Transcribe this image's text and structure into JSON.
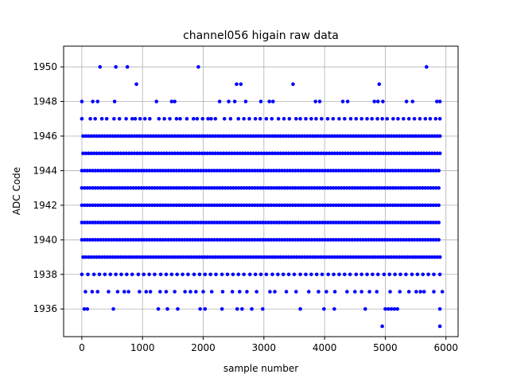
{
  "chart_data": {
    "type": "scatter",
    "title": "channel056 higain raw data",
    "xlabel": "sample number",
    "ylabel": "ADC Code",
    "xlim": [
      -300,
      6200
    ],
    "ylim": [
      1934.4,
      1951.2
    ],
    "x_ticks": [
      0,
      1000,
      2000,
      3000,
      4000,
      5000,
      6000
    ],
    "x_tick_labels": [
      "0",
      "1000",
      "2000",
      "3000",
      "4000",
      "5000",
      "6000"
    ],
    "y_ticks": [
      1936,
      1938,
      1940,
      1942,
      1944,
      1946,
      1948,
      1950
    ],
    "y_tick_labels": [
      "1936",
      "1938",
      "1940",
      "1942",
      "1944",
      "1946",
      "1948",
      "1950"
    ],
    "grid": true,
    "marker_color": "#0000ff",
    "series": [
      {
        "name": "",
        "dense_rows": [
          {
            "y": 1939,
            "x_start": 20,
            "x_end": 5920
          },
          {
            "y": 1940,
            "x_start": 0,
            "x_end": 5920
          },
          {
            "y": 1941,
            "x_start": 0,
            "x_end": 5920
          },
          {
            "y": 1942,
            "x_start": 0,
            "x_end": 5920
          },
          {
            "y": 1943,
            "x_start": 0,
            "x_end": 5920
          },
          {
            "y": 1944,
            "x_start": 0,
            "x_end": 5920
          },
          {
            "y": 1945,
            "x_start": 20,
            "x_end": 5920
          },
          {
            "y": 1946,
            "x_start": 20,
            "x_end": 5920
          }
        ],
        "points": [
          [
            300,
            1950
          ],
          [
            560,
            1950
          ],
          [
            750,
            1950
          ],
          [
            1920,
            1950
          ],
          [
            5680,
            1950
          ],
          [
            900,
            1949
          ],
          [
            2550,
            1949
          ],
          [
            2620,
            1949
          ],
          [
            3480,
            1949
          ],
          [
            4900,
            1949
          ],
          [
            0,
            1948
          ],
          [
            180,
            1948
          ],
          [
            260,
            1948
          ],
          [
            540,
            1948
          ],
          [
            1230,
            1948
          ],
          [
            1480,
            1948
          ],
          [
            1530,
            1948
          ],
          [
            2270,
            1948
          ],
          [
            2420,
            1948
          ],
          [
            2520,
            1948
          ],
          [
            2700,
            1948
          ],
          [
            2950,
            1948
          ],
          [
            3090,
            1948
          ],
          [
            3150,
            1948
          ],
          [
            3850,
            1948
          ],
          [
            3920,
            1948
          ],
          [
            4300,
            1948
          ],
          [
            4380,
            1948
          ],
          [
            4820,
            1948
          ],
          [
            4880,
            1948
          ],
          [
            4960,
            1948
          ],
          [
            5350,
            1948
          ],
          [
            5450,
            1948
          ],
          [
            5850,
            1948
          ],
          [
            5900,
            1948
          ],
          [
            0,
            1947
          ],
          [
            140,
            1947
          ],
          [
            220,
            1947
          ],
          [
            330,
            1947
          ],
          [
            410,
            1947
          ],
          [
            530,
            1947
          ],
          [
            620,
            1947
          ],
          [
            730,
            1947
          ],
          [
            830,
            1947
          ],
          [
            880,
            1947
          ],
          [
            960,
            1947
          ],
          [
            1040,
            1947
          ],
          [
            1120,
            1947
          ],
          [
            1270,
            1947
          ],
          [
            1360,
            1947
          ],
          [
            1450,
            1947
          ],
          [
            1560,
            1947
          ],
          [
            1620,
            1947
          ],
          [
            1730,
            1947
          ],
          [
            1840,
            1947
          ],
          [
            1900,
            1947
          ],
          [
            1990,
            1947
          ],
          [
            2080,
            1947
          ],
          [
            2130,
            1947
          ],
          [
            2200,
            1947
          ],
          [
            2350,
            1947
          ],
          [
            2450,
            1947
          ],
          [
            2580,
            1947
          ],
          [
            2670,
            1947
          ],
          [
            2760,
            1947
          ],
          [
            2860,
            1947
          ],
          [
            2940,
            1947
          ],
          [
            3040,
            1947
          ],
          [
            3130,
            1947
          ],
          [
            3240,
            1947
          ],
          [
            3330,
            1947
          ],
          [
            3420,
            1947
          ],
          [
            3530,
            1947
          ],
          [
            3600,
            1947
          ],
          [
            3690,
            1947
          ],
          [
            3780,
            1947
          ],
          [
            3860,
            1947
          ],
          [
            3950,
            1947
          ],
          [
            4050,
            1947
          ],
          [
            4140,
            1947
          ],
          [
            4240,
            1947
          ],
          [
            4330,
            1947
          ],
          [
            4430,
            1947
          ],
          [
            4520,
            1947
          ],
          [
            4610,
            1947
          ],
          [
            4700,
            1947
          ],
          [
            4780,
            1947
          ],
          [
            4870,
            1947
          ],
          [
            4950,
            1947
          ],
          [
            5030,
            1947
          ],
          [
            5130,
            1947
          ],
          [
            5210,
            1947
          ],
          [
            5300,
            1947
          ],
          [
            5390,
            1947
          ],
          [
            5480,
            1947
          ],
          [
            5570,
            1947
          ],
          [
            5660,
            1947
          ],
          [
            5740,
            1947
          ],
          [
            5830,
            1947
          ],
          [
            5900,
            1947
          ],
          [
            0,
            1938
          ],
          [
            100,
            1938
          ],
          [
            200,
            1938
          ],
          [
            290,
            1938
          ],
          [
            380,
            1938
          ],
          [
            470,
            1938
          ],
          [
            560,
            1938
          ],
          [
            650,
            1938
          ],
          [
            740,
            1938
          ],
          [
            830,
            1938
          ],
          [
            930,
            1938
          ],
          [
            1020,
            1938
          ],
          [
            1110,
            1938
          ],
          [
            1200,
            1938
          ],
          [
            1300,
            1938
          ],
          [
            1390,
            1938
          ],
          [
            1480,
            1938
          ],
          [
            1570,
            1938
          ],
          [
            1660,
            1938
          ],
          [
            1750,
            1938
          ],
          [
            1850,
            1938
          ],
          [
            1940,
            1938
          ],
          [
            2030,
            1938
          ],
          [
            2120,
            1938
          ],
          [
            2210,
            1938
          ],
          [
            2310,
            1938
          ],
          [
            2400,
            1938
          ],
          [
            2490,
            1938
          ],
          [
            2580,
            1938
          ],
          [
            2670,
            1938
          ],
          [
            2770,
            1938
          ],
          [
            2860,
            1938
          ],
          [
            2950,
            1938
          ],
          [
            3040,
            1938
          ],
          [
            3140,
            1938
          ],
          [
            3230,
            1938
          ],
          [
            3320,
            1938
          ],
          [
            3410,
            1938
          ],
          [
            3500,
            1938
          ],
          [
            3600,
            1938
          ],
          [
            3690,
            1938
          ],
          [
            3780,
            1938
          ],
          [
            3870,
            1938
          ],
          [
            3960,
            1938
          ],
          [
            4060,
            1938
          ],
          [
            4150,
            1938
          ],
          [
            4240,
            1938
          ],
          [
            4330,
            1938
          ],
          [
            4420,
            1938
          ],
          [
            4520,
            1938
          ],
          [
            4610,
            1938
          ],
          [
            4700,
            1938
          ],
          [
            4790,
            1938
          ],
          [
            4880,
            1938
          ],
          [
            4980,
            1938
          ],
          [
            5070,
            1938
          ],
          [
            5160,
            1938
          ],
          [
            5250,
            1938
          ],
          [
            5340,
            1938
          ],
          [
            5440,
            1938
          ],
          [
            5530,
            1938
          ],
          [
            5620,
            1938
          ],
          [
            5710,
            1938
          ],
          [
            5800,
            1938
          ],
          [
            5900,
            1938
          ],
          [
            60,
            1937
          ],
          [
            170,
            1937
          ],
          [
            260,
            1937
          ],
          [
            440,
            1937
          ],
          [
            590,
            1937
          ],
          [
            700,
            1937
          ],
          [
            770,
            1937
          ],
          [
            950,
            1937
          ],
          [
            1060,
            1937
          ],
          [
            1130,
            1937
          ],
          [
            1290,
            1937
          ],
          [
            1390,
            1937
          ],
          [
            1530,
            1937
          ],
          [
            1700,
            1937
          ],
          [
            1790,
            1937
          ],
          [
            1880,
            1937
          ],
          [
            2000,
            1937
          ],
          [
            2140,
            1937
          ],
          [
            2320,
            1937
          ],
          [
            2480,
            1937
          ],
          [
            2600,
            1937
          ],
          [
            2720,
            1937
          ],
          [
            2880,
            1937
          ],
          [
            3100,
            1937
          ],
          [
            3180,
            1937
          ],
          [
            3370,
            1937
          ],
          [
            3530,
            1937
          ],
          [
            3740,
            1937
          ],
          [
            3900,
            1937
          ],
          [
            4030,
            1937
          ],
          [
            4170,
            1937
          ],
          [
            4370,
            1937
          ],
          [
            4500,
            1937
          ],
          [
            4610,
            1937
          ],
          [
            4740,
            1937
          ],
          [
            4860,
            1937
          ],
          [
            5080,
            1937
          ],
          [
            5240,
            1937
          ],
          [
            5390,
            1937
          ],
          [
            5510,
            1937
          ],
          [
            5580,
            1937
          ],
          [
            5640,
            1937
          ],
          [
            5800,
            1937
          ],
          [
            5940,
            1937
          ],
          [
            40,
            1936
          ],
          [
            90,
            1936
          ],
          [
            520,
            1936
          ],
          [
            1260,
            1936
          ],
          [
            1410,
            1936
          ],
          [
            1580,
            1936
          ],
          [
            1950,
            1936
          ],
          [
            2030,
            1936
          ],
          [
            2310,
            1936
          ],
          [
            2560,
            1936
          ],
          [
            2640,
            1936
          ],
          [
            2800,
            1936
          ],
          [
            2980,
            1936
          ],
          [
            3600,
            1936
          ],
          [
            3990,
            1936
          ],
          [
            4160,
            1936
          ],
          [
            4670,
            1936
          ],
          [
            5000,
            1936
          ],
          [
            5050,
            1936
          ],
          [
            5100,
            1936
          ],
          [
            5150,
            1936
          ],
          [
            5200,
            1936
          ],
          [
            5900,
            1936
          ],
          [
            4950,
            1935
          ],
          [
            5900,
            1935
          ]
        ]
      }
    ]
  }
}
